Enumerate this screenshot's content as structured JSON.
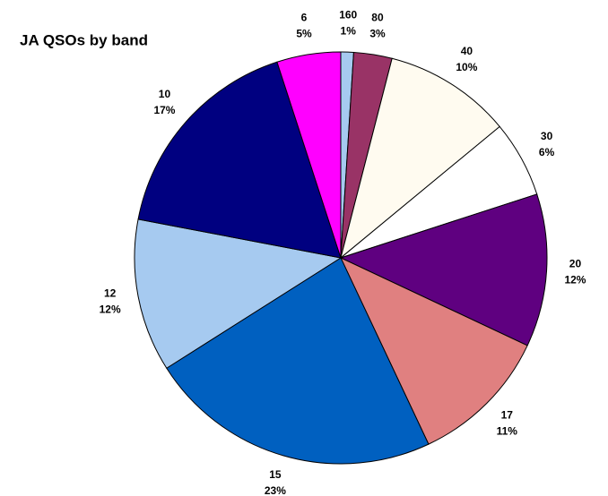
{
  "chart_data": {
    "type": "pie",
    "title": "JA QSOs by band",
    "categories": [
      "160",
      "80",
      "40",
      "30",
      "20",
      "17",
      "15",
      "12",
      "10",
      "6"
    ],
    "values": [
      1,
      3,
      10,
      6,
      12,
      11,
      23,
      12,
      17,
      5
    ],
    "value_labels": [
      "1%",
      "3%",
      "10%",
      "6%",
      "12%",
      "11%",
      "23%",
      "12%",
      "17%",
      "5%"
    ],
    "colors": [
      "#a6caf0",
      "#993366",
      "#fffbf0",
      "#ffffff",
      "#5f0080",
      "#e08080",
      "#0060c0",
      "#a6caf0",
      "#000080",
      "#ff00ff"
    ]
  }
}
